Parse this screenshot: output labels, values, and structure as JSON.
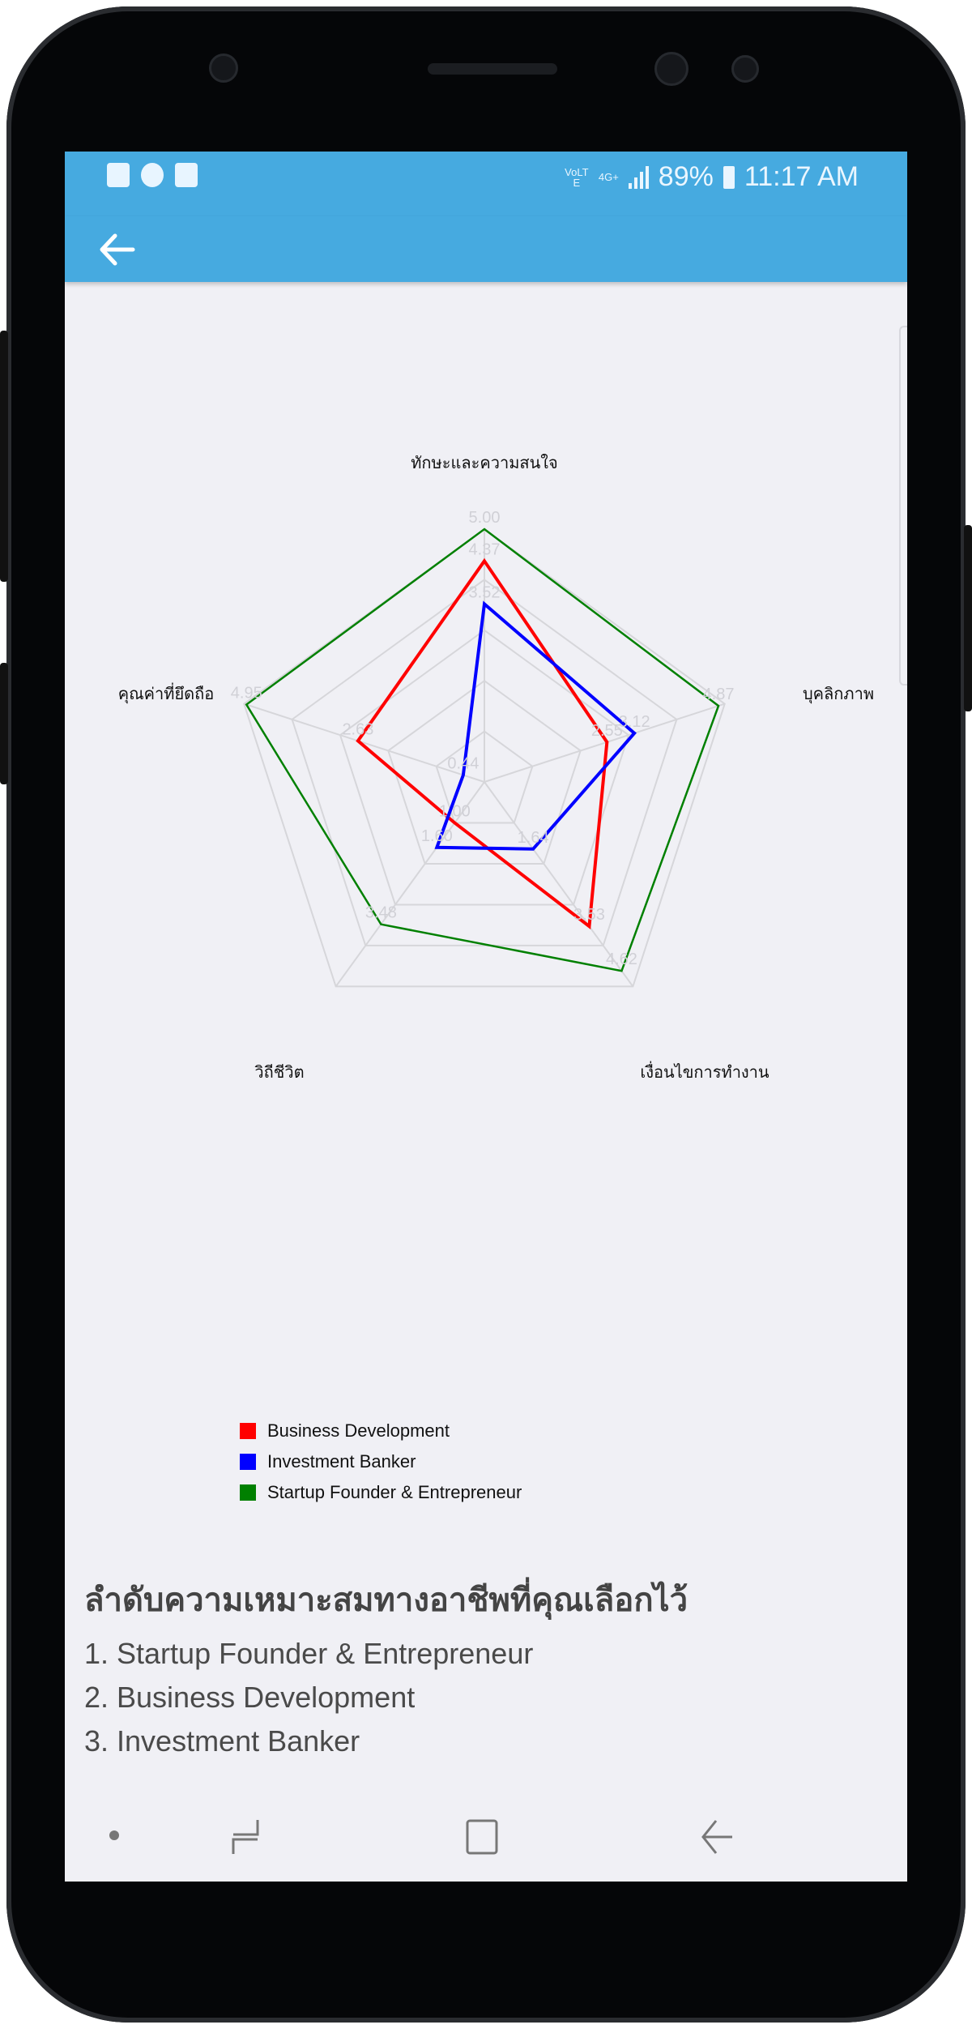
{
  "status_bar": {
    "notification_icons": [
      "message-icon",
      "line-icon",
      "calendar-icon"
    ],
    "volte": "VoLTE",
    "network": "4G+",
    "battery": "89%",
    "time": "11:17 AM"
  },
  "app_bar": {
    "back_icon": "arrow-left-icon"
  },
  "chart_data": {
    "type": "radar",
    "axes": [
      "ทักษะและความสนใจ",
      "บุคลิกภาพ",
      "เงื่อนไขการทำงาน",
      "วิถีชีวิต",
      "คุณค่าที่ยึดถือ"
    ],
    "range": [
      0,
      5
    ],
    "grid": true,
    "legend_position": "bottom-left",
    "series": [
      {
        "name": "Business Development",
        "color": "#ff0000",
        "values": [
          4.37,
          2.55,
          3.53,
          1.0,
          2.63
        ]
      },
      {
        "name": "Investment Banker",
        "color": "#0000ff",
        "values": [
          3.52,
          3.12,
          1.64,
          1.6,
          0.44
        ]
      },
      {
        "name": "Startup Founder & Entrepreneur",
        "color": "#008000",
        "values": [
          5.0,
          4.87,
          4.62,
          3.48,
          4.95
        ]
      }
    ]
  },
  "ranking": {
    "title": "ลำดับความเหมาะสมทางอาชีพที่คุณเลือกไว้",
    "items": [
      "1. Startup Founder & Entrepreneur",
      "2. Business Development",
      "3. Investment Banker"
    ]
  },
  "nav_bar": {
    "icons": [
      "dot-icon",
      "recents-icon",
      "home-icon",
      "back-icon"
    ]
  }
}
